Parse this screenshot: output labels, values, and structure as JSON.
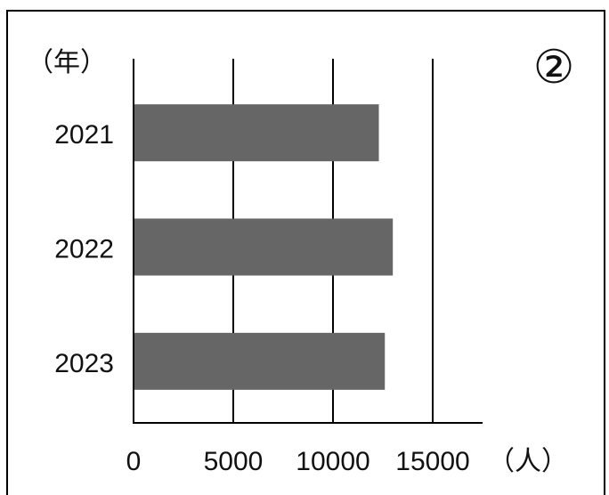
{
  "chart_data": {
    "type": "bar",
    "orientation": "horizontal",
    "panel_label": "②",
    "y_unit_label": "（年）",
    "x_unit_label": "（人）",
    "categories": [
      "2021",
      "2022",
      "2023"
    ],
    "values": [
      12300,
      13000,
      12600
    ],
    "xlim": [
      0,
      17500
    ],
    "x_ticks": [
      0,
      5000,
      10000,
      15000
    ],
    "x_tick_labels": [
      "0",
      "5000",
      "10000",
      "15000"
    ],
    "grid": "vertical",
    "bar_color": "#666666"
  }
}
